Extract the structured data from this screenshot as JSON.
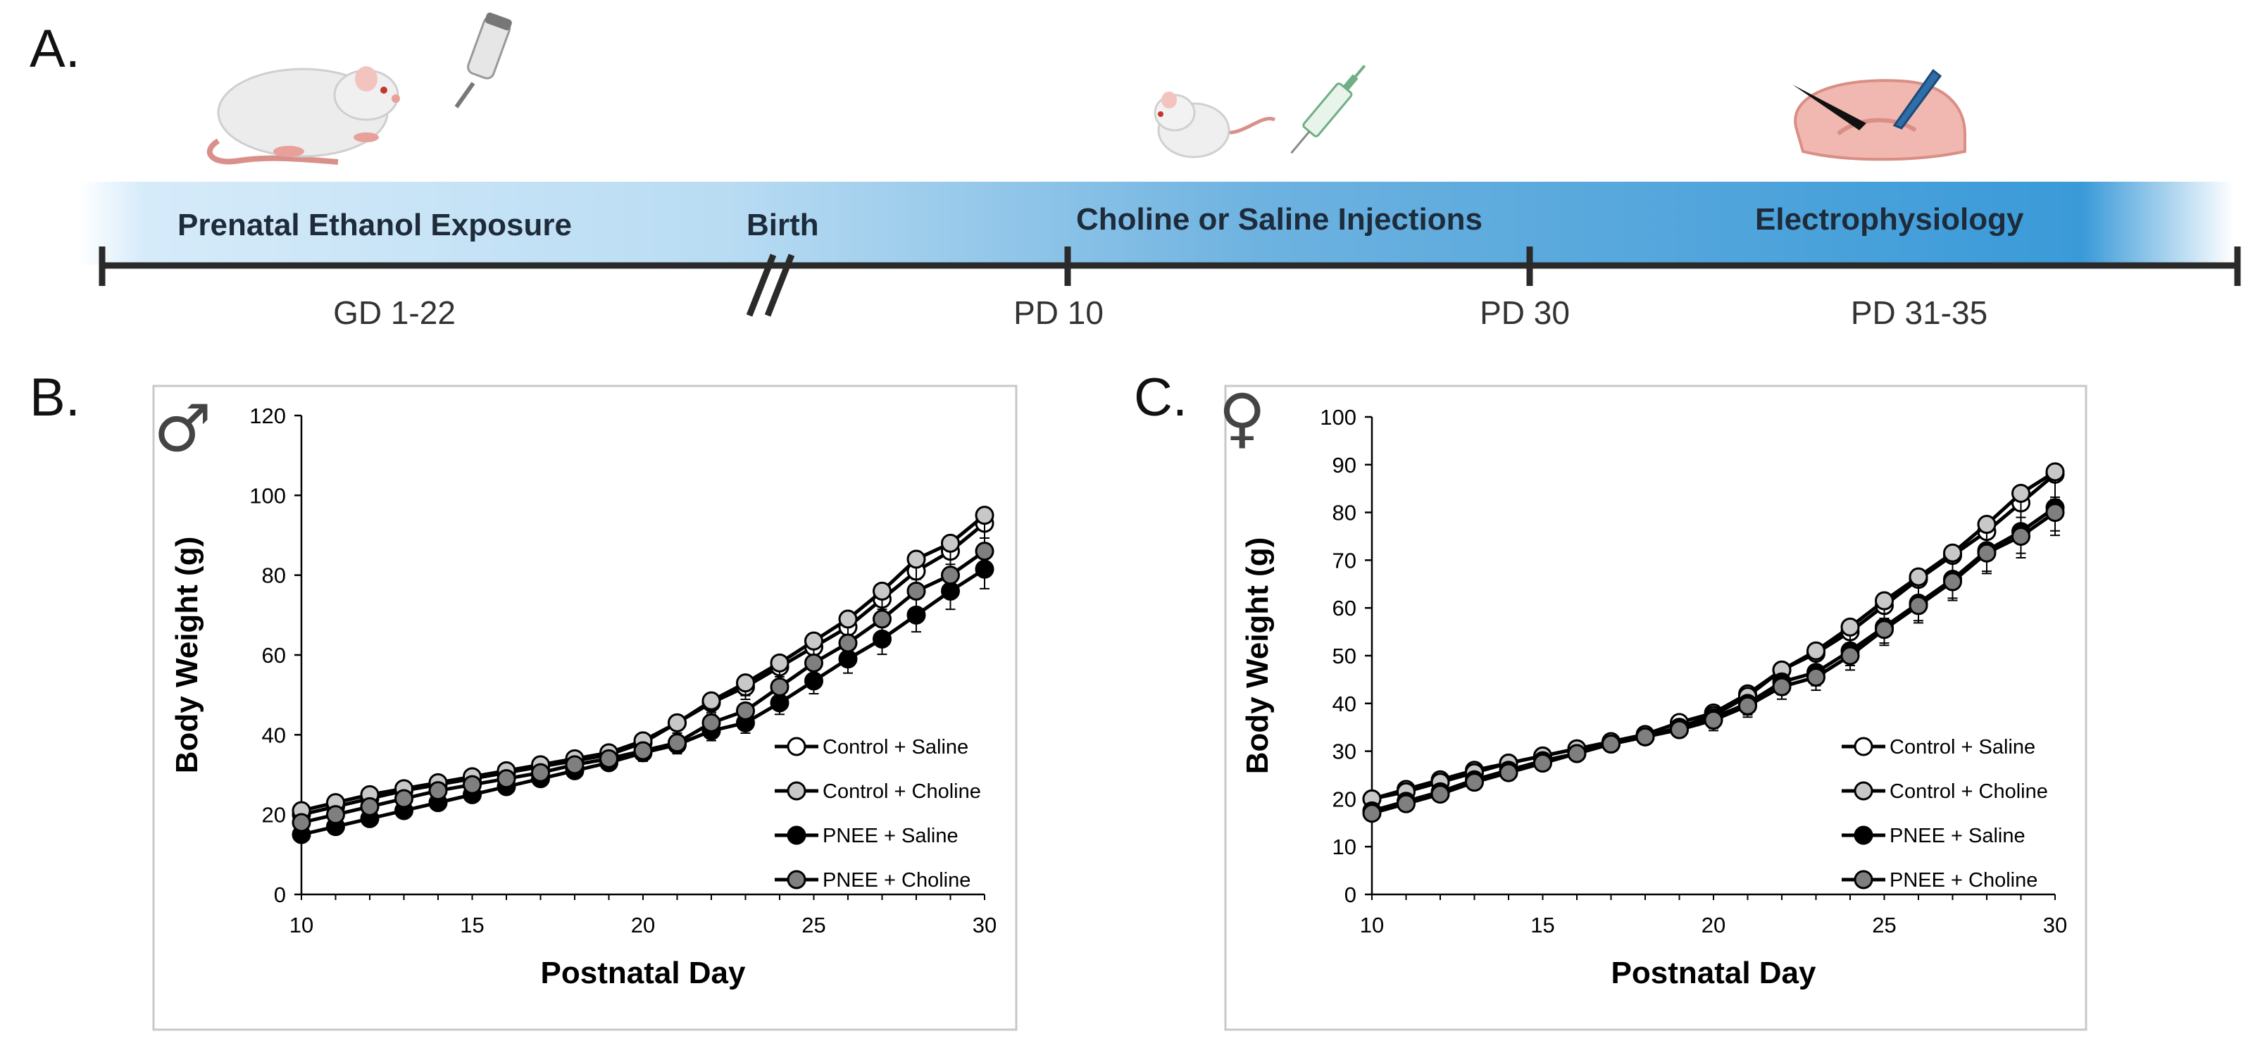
{
  "colors": {
    "timeline_blue": "#3a9ad8",
    "timeline_light": "#cfe6f7",
    "dark": "#2a2a2a",
    "control_saline": "#ffffff",
    "control_choline": "#c8c8c8",
    "pnee_saline": "#000000",
    "pnee_choline": "#7f7f7f"
  },
  "panel_a": {
    "letter": "A.",
    "labels": {
      "prenatal": "Prenatal Ethanol Exposure",
      "birth": "Birth",
      "injections": "Choline or Saline Injections",
      "ephys": "Electrophysiology"
    },
    "ticks": {
      "gd": "GD 1-22",
      "pd10": "PD 10",
      "pd30": "PD 30",
      "pd31": "PD 31-35"
    },
    "icons": [
      "adult-rat-icon",
      "water-bottle-icon",
      "pup-icon",
      "syringe-icon",
      "brain-slice-icon"
    ]
  },
  "chart_data": [
    {
      "type": "line",
      "panel": "B.",
      "sex_symbol": "♂",
      "xlabel": "Postnatal Day",
      "ylabel": "Body Weight (g)",
      "xlim": [
        10,
        30
      ],
      "ylim": [
        0,
        120
      ],
      "xticks": [
        10,
        15,
        20,
        25,
        30
      ],
      "yticks": [
        0,
        20,
        40,
        60,
        80,
        100,
        120
      ],
      "legend_position": "bottom-right",
      "x": [
        10,
        11,
        12,
        13,
        14,
        15,
        16,
        17,
        18,
        19,
        20,
        21,
        22,
        23,
        24,
        25,
        26,
        27,
        28,
        29,
        30
      ],
      "series": [
        {
          "name": "Control + Saline",
          "fill": "#ffffff",
          "values": [
            20,
            22,
            24,
            26,
            27.5,
            29,
            30.5,
            32,
            33.5,
            35,
            38,
            43,
            48,
            52,
            57,
            62,
            67,
            74,
            81,
            86,
            93
          ]
        },
        {
          "name": "Control + Choline",
          "fill": "#c8c8c8",
          "values": [
            21,
            23,
            25,
            26.5,
            28,
            29.5,
            31,
            32.5,
            34,
            35.5,
            38.5,
            43,
            48.5,
            53,
            58,
            63.5,
            69,
            76,
            84,
            88,
            95
          ]
        },
        {
          "name": "PNEE + Saline",
          "fill": "#000000",
          "values": [
            15,
            17,
            19,
            21,
            23,
            25,
            27,
            29,
            31,
            33,
            35.5,
            37.5,
            41,
            43,
            48,
            53.5,
            59,
            64,
            70,
            76,
            81.5
          ]
        },
        {
          "name": "PNEE + Choline",
          "fill": "#7f7f7f",
          "values": [
            18,
            20,
            22,
            24,
            26,
            27.5,
            29,
            30.5,
            32.5,
            34,
            36,
            38,
            43,
            46,
            52,
            58,
            63,
            69,
            76,
            80,
            86
          ]
        }
      ]
    },
    {
      "type": "line",
      "panel": "C.",
      "sex_symbol": "♀",
      "xlabel": "Postnatal Day",
      "ylabel": "Body Weight (g)",
      "xlim": [
        10,
        30
      ],
      "ylim": [
        0,
        100
      ],
      "xticks": [
        10,
        15,
        20,
        25,
        30
      ],
      "yticks": [
        0,
        10,
        20,
        30,
        40,
        50,
        60,
        70,
        80,
        90,
        100
      ],
      "legend_position": "bottom-right",
      "x": [
        10,
        11,
        12,
        13,
        14,
        15,
        16,
        17,
        18,
        19,
        20,
        21,
        22,
        23,
        24,
        25,
        26,
        27,
        28,
        29,
        30
      ],
      "series": [
        {
          "name": "Control + Saline",
          "fill": "#ffffff",
          "values": [
            20,
            22,
            24,
            26,
            27.5,
            29,
            30.5,
            32,
            33.5,
            36,
            38,
            42,
            47,
            50.5,
            55,
            60.5,
            66,
            71,
            76,
            82,
            88
          ]
        },
        {
          "name": "Control + Choline",
          "fill": "#c8c8c8",
          "values": [
            20,
            21.5,
            23.5,
            25.5,
            27.5,
            29,
            30.5,
            31.5,
            33,
            35,
            37.5,
            41.5,
            47,
            51,
            56,
            61.5,
            66.5,
            71.5,
            77.5,
            84,
            88.5
          ]
        },
        {
          "name": "PNEE + Saline",
          "fill": "#000000",
          "values": [
            17.5,
            19.5,
            21.5,
            24,
            26,
            28,
            29.5,
            31.5,
            33,
            35,
            37,
            40,
            44.5,
            46.5,
            51,
            56,
            61,
            66,
            72,
            76,
            81
          ]
        },
        {
          "name": "PNEE + Choline",
          "fill": "#7f7f7f",
          "values": [
            17,
            19,
            21,
            23.5,
            25.5,
            27.5,
            29.5,
            31.5,
            33,
            34.5,
            36.5,
            39.5,
            43.5,
            45.5,
            50,
            55.5,
            60.5,
            65.5,
            71.5,
            75,
            80
          ]
        }
      ]
    }
  ]
}
